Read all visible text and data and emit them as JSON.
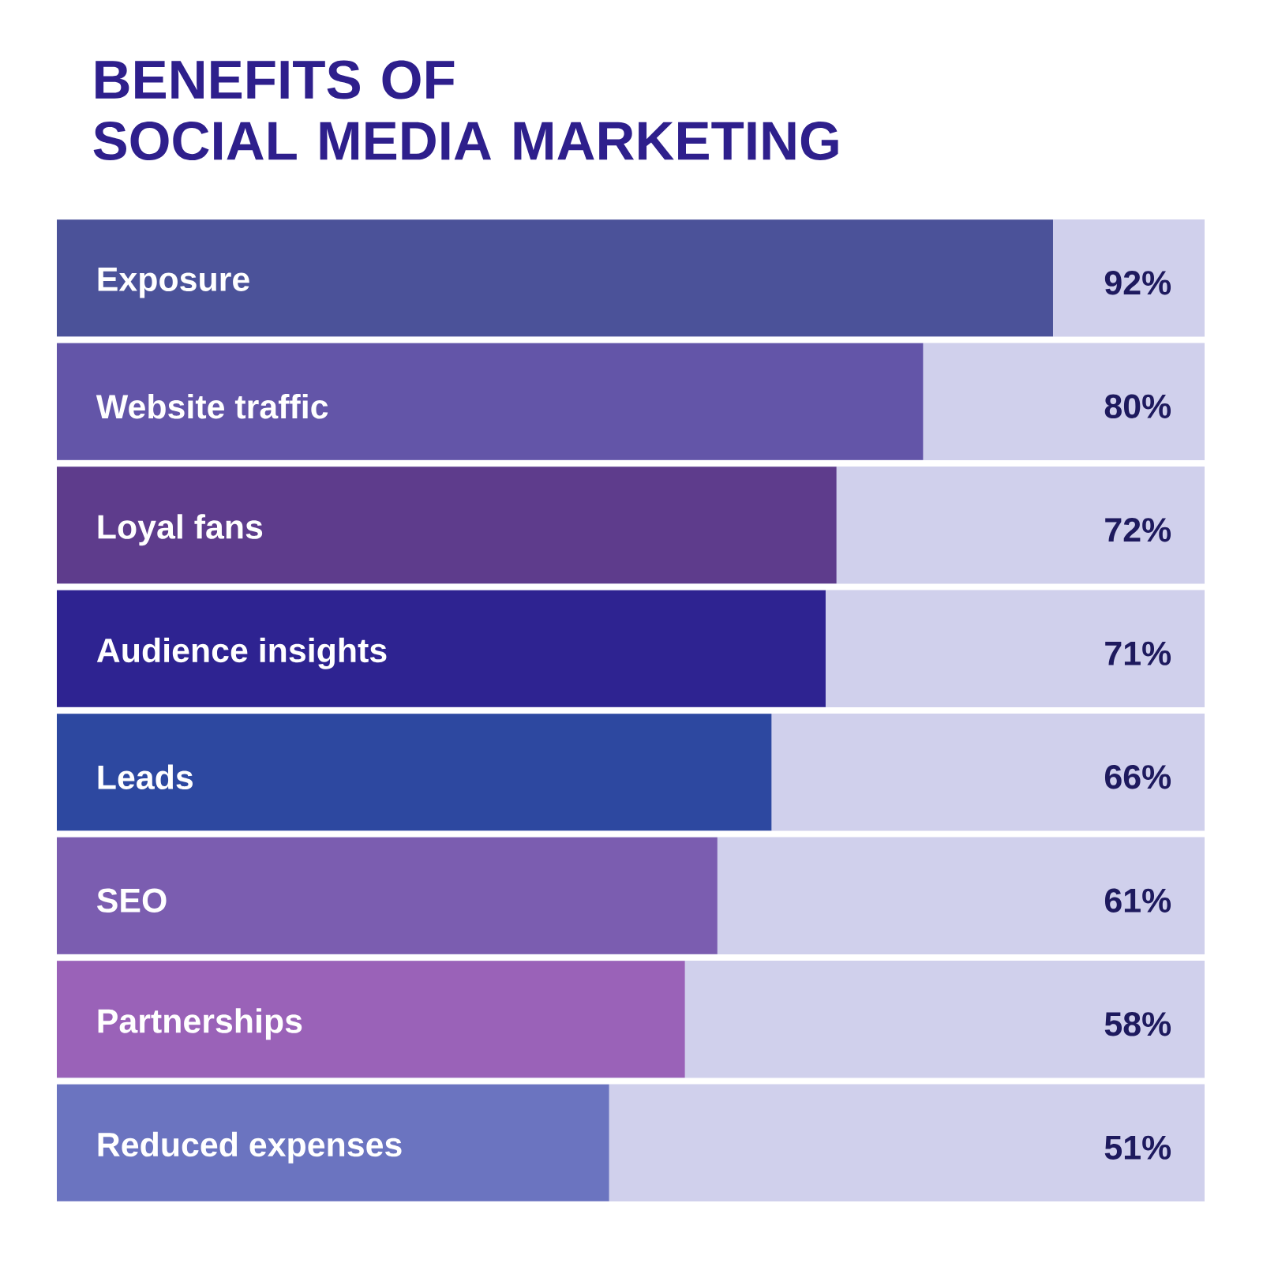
{
  "chart_data": {
    "type": "bar",
    "orientation": "horizontal",
    "title": "BENEFITS OF\nSOCIAL MEDIA MARKETING",
    "categories": [
      "Exposure",
      "Website traffic",
      "Loyal fans",
      "Audience insights",
      "Leads",
      "SEO",
      "Partnerships",
      "Reduced expenses"
    ],
    "values": [
      92,
      80,
      72,
      71,
      66,
      61,
      58,
      51
    ],
    "value_labels": [
      "92%",
      "80%",
      "72%",
      "71%",
      "66%",
      "61%",
      "58%",
      "51%"
    ],
    "colors": [
      "#4b5299",
      "#6355a8",
      "#5e3c8c",
      "#2e2391",
      "#2d48a0",
      "#7b5db0",
      "#9a62b8",
      "#6b74c0"
    ],
    "xlim": [
      0,
      106
    ]
  }
}
